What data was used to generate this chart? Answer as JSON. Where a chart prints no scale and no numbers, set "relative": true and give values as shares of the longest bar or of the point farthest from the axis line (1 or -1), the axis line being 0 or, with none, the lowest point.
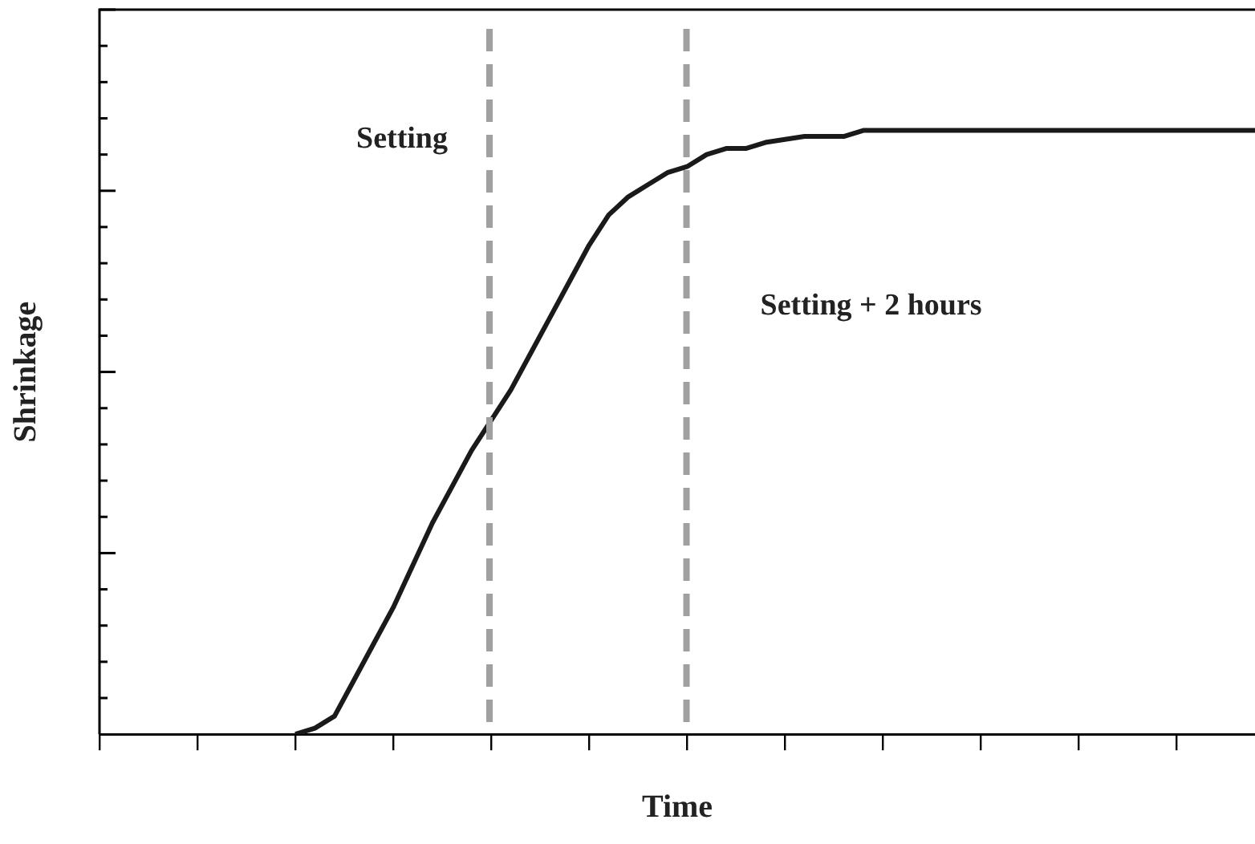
{
  "chart_data": {
    "type": "line",
    "relative": true,
    "xlabel": "Time",
    "ylabel": "Shrinkage",
    "categories": [
      null,
      null,
      null,
      null,
      null,
      null,
      null,
      null,
      null,
      null,
      null,
      null,
      null,
      null,
      null,
      null,
      null,
      null,
      null,
      null,
      null,
      null,
      null,
      null,
      null,
      null,
      null,
      null,
      null,
      null,
      null,
      null,
      null,
      null,
      null,
      null,
      null,
      null,
      null,
      null,
      null,
      null,
      null,
      null,
      null,
      null,
      null,
      null,
      null,
      null,
      null,
      null,
      null,
      null,
      null,
      null,
      null,
      null,
      null,
      null
    ],
    "series": [
      {
        "color": "#1a1a1a",
        "values": [
          null,
          null,
          null,
          null,
          null,
          null,
          null,
          null,
          null,
          null,
          0,
          0.01,
          0.03,
          0.09,
          0.15,
          0.21,
          0.28,
          0.35,
          0.41,
          0.47,
          0.52,
          0.57,
          0.63,
          0.69,
          0.75,
          0.81,
          0.86,
          0.89,
          0.91,
          0.93,
          0.94,
          0.96,
          0.97,
          0.97,
          0.98,
          0.985,
          0.99,
          0.99,
          0.99,
          1,
          1,
          1,
          1,
          1,
          1,
          1,
          1,
          1,
          1,
          1,
          1,
          1,
          1,
          1,
          1,
          1,
          1,
          1,
          1,
          1
        ]
      }
    ],
    "annotations": [
      "Setting",
      "Setting + 2 hours"
    ],
    "grid": false,
    "legend": false,
    "marker": "none",
    "line_style": "solid"
  }
}
